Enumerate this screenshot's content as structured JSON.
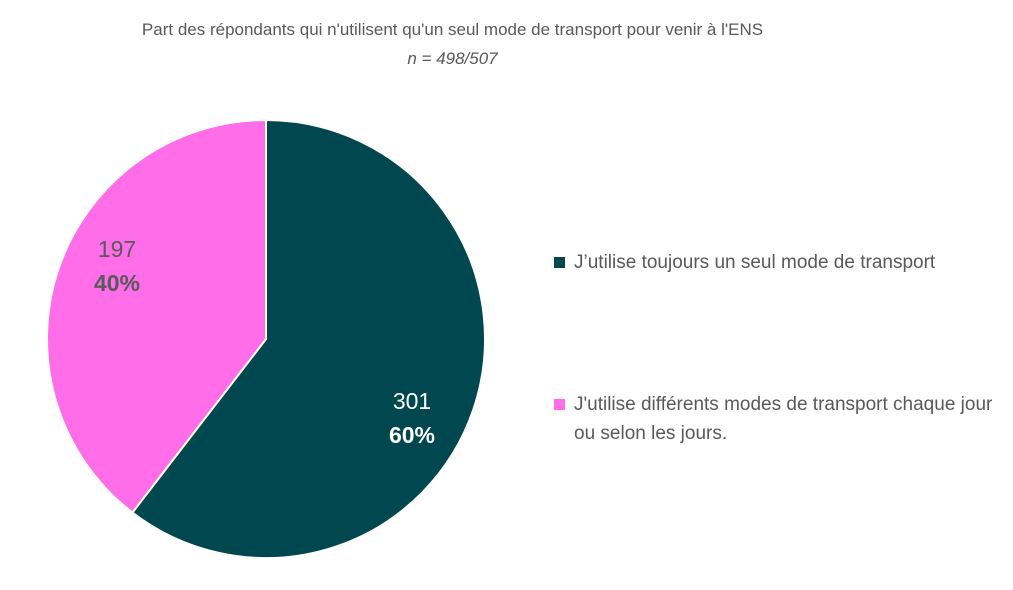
{
  "chart_data": {
    "type": "pie",
    "title": "Part des répondants qui n'utilisent qu'un seul mode de transport pour venir à l'ENS",
    "subtitle": "n = 498/507",
    "legend_position": "right",
    "slices": [
      {
        "name": "J’utilise toujours un seul mode de transport",
        "value": 301,
        "percent": "60%",
        "color": "#00474F",
        "label_color": "#ffffff"
      },
      {
        "name": "J'utilise différents modes de transport chaque jour ou selon les jours.",
        "value": 197,
        "percent": "40%",
        "color": "#FF6EE8",
        "label_color": "#595959"
      }
    ]
  }
}
